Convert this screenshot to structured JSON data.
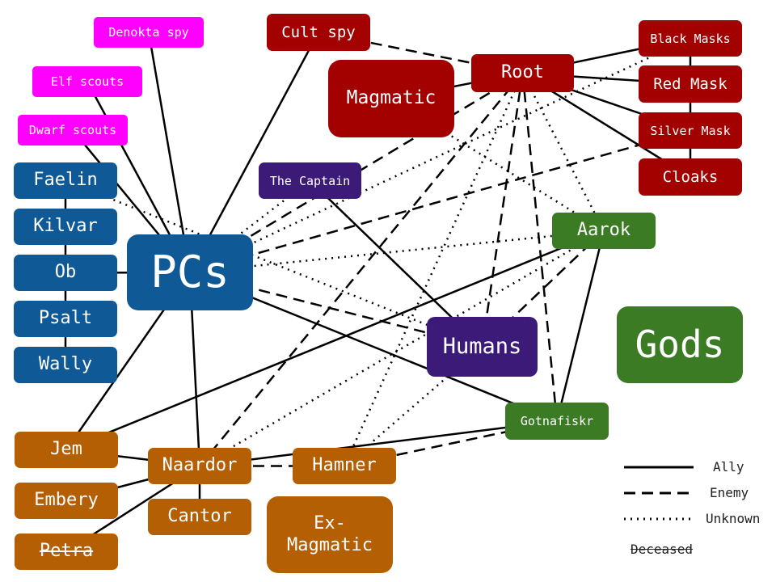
{
  "colors": {
    "pc_blue": "#0f5a96",
    "cult_red": "#a30000",
    "magenta": "#ff00ff",
    "purple": "#3b1a78",
    "green": "#3a7b23",
    "orange": "#b45f04"
  },
  "nodes": {
    "denokta_spy": "Denokta spy",
    "elf_scouts": "Elf scouts",
    "dwarf_scouts": "Dwarf scouts",
    "cult_spy": "Cult spy",
    "magmatic": "Magmatic",
    "root": "Root",
    "black_masks": "Black Masks",
    "red_mask": "Red Mask",
    "silver_mask": "Silver Mask",
    "cloaks": "Cloaks",
    "faelin": "Faelin",
    "kilvar": "Kilvar",
    "ob": "Ob",
    "psalt": "Psalt",
    "wally": "Wally",
    "pcs": "PCs",
    "the_captain": "The Captain",
    "aarok": "Aarok",
    "humans": "Humans",
    "gods": "Gods",
    "gotnafiskr": "Gotnafiskr",
    "jem": "Jem",
    "naardor": "Naardor",
    "hamner": "Hamner",
    "embery": "Embery",
    "cantor": "Cantor",
    "ex_magmatic": "Ex-\nMagmatic",
    "petra": "Petra"
  },
  "legend": {
    "ally": "Ally",
    "enemy": "Enemy",
    "unknown": "Unknown",
    "deceased": "Deceased"
  },
  "edges": [
    {
      "from": "denokta_spy",
      "to": "pcs",
      "type": "ally"
    },
    {
      "from": "elf_scouts",
      "to": "pcs",
      "type": "ally"
    },
    {
      "from": "dwarf_scouts",
      "to": "pcs",
      "type": "ally"
    },
    {
      "from": "cult_spy",
      "to": "pcs",
      "type": "ally"
    },
    {
      "from": "ob",
      "to": "pcs",
      "type": "ally"
    },
    {
      "from": "faelin",
      "to": "kilvar",
      "type": "ally"
    },
    {
      "from": "kilvar",
      "to": "ob",
      "type": "ally"
    },
    {
      "from": "ob",
      "to": "psalt",
      "type": "ally"
    },
    {
      "from": "psalt",
      "to": "wally",
      "type": "ally"
    },
    {
      "from": "magmatic",
      "to": "root",
      "type": "ally"
    },
    {
      "from": "root",
      "to": "black_masks",
      "type": "ally"
    },
    {
      "from": "root",
      "to": "red_mask",
      "type": "ally"
    },
    {
      "from": "root",
      "to": "silver_mask",
      "type": "ally"
    },
    {
      "from": "root",
      "to": "cloaks",
      "type": "ally"
    },
    {
      "from": "black_masks",
      "to": "red_mask",
      "type": "ally"
    },
    {
      "from": "red_mask",
      "to": "silver_mask",
      "type": "ally"
    },
    {
      "from": "silver_mask",
      "to": "cloaks",
      "type": "ally"
    },
    {
      "from": "the_captain",
      "to": "humans",
      "type": "ally"
    },
    {
      "from": "pcs",
      "to": "jem",
      "type": "ally"
    },
    {
      "from": "pcs",
      "to": "naardor",
      "type": "ally"
    },
    {
      "from": "pcs",
      "to": "gotnafiskr",
      "type": "ally"
    },
    {
      "from": "jem",
      "to": "aarok",
      "type": "ally"
    },
    {
      "from": "jem",
      "to": "naardor",
      "type": "ally"
    },
    {
      "from": "embery",
      "to": "naardor",
      "type": "ally"
    },
    {
      "from": "petra",
      "to": "naardor",
      "type": "ally"
    },
    {
      "from": "naardor",
      "to": "cantor",
      "type": "ally"
    },
    {
      "from": "naardor",
      "to": "gotnafiskr",
      "type": "ally"
    },
    {
      "from": "aarok",
      "to": "gotnafiskr",
      "type": "ally"
    },
    {
      "from": "cult_spy",
      "to": "root",
      "type": "enemy"
    },
    {
      "from": "pcs",
      "to": "root",
      "type": "enemy"
    },
    {
      "from": "pcs",
      "to": "silver_mask",
      "type": "enemy"
    },
    {
      "from": "pcs",
      "to": "humans",
      "type": "enemy"
    },
    {
      "from": "root",
      "to": "humans",
      "type": "enemy"
    },
    {
      "from": "root",
      "to": "gotnafiskr",
      "type": "enemy"
    },
    {
      "from": "root",
      "to": "naardor",
      "type": "enemy"
    },
    {
      "from": "aarok",
      "to": "humans",
      "type": "enemy"
    },
    {
      "from": "naardor",
      "to": "hamner",
      "type": "enemy"
    },
    {
      "from": "hamner",
      "to": "gotnafiskr",
      "type": "enemy"
    },
    {
      "from": "faelin",
      "to": "humans",
      "type": "unknown"
    },
    {
      "from": "pcs",
      "to": "the_captain",
      "type": "unknown"
    },
    {
      "from": "pcs",
      "to": "aarok",
      "type": "unknown"
    },
    {
      "from": "pcs",
      "to": "black_masks",
      "type": "unknown"
    },
    {
      "from": "magmatic",
      "to": "aarok",
      "type": "unknown"
    },
    {
      "from": "root",
      "to": "aarok",
      "type": "unknown"
    },
    {
      "from": "root",
      "to": "hamner",
      "type": "unknown"
    },
    {
      "from": "aarok",
      "to": "naardor",
      "type": "unknown"
    },
    {
      "from": "humans",
      "to": "hamner",
      "type": "unknown"
    },
    {
      "from": "humans",
      "to": "the_captain",
      "type": "unknown"
    }
  ]
}
